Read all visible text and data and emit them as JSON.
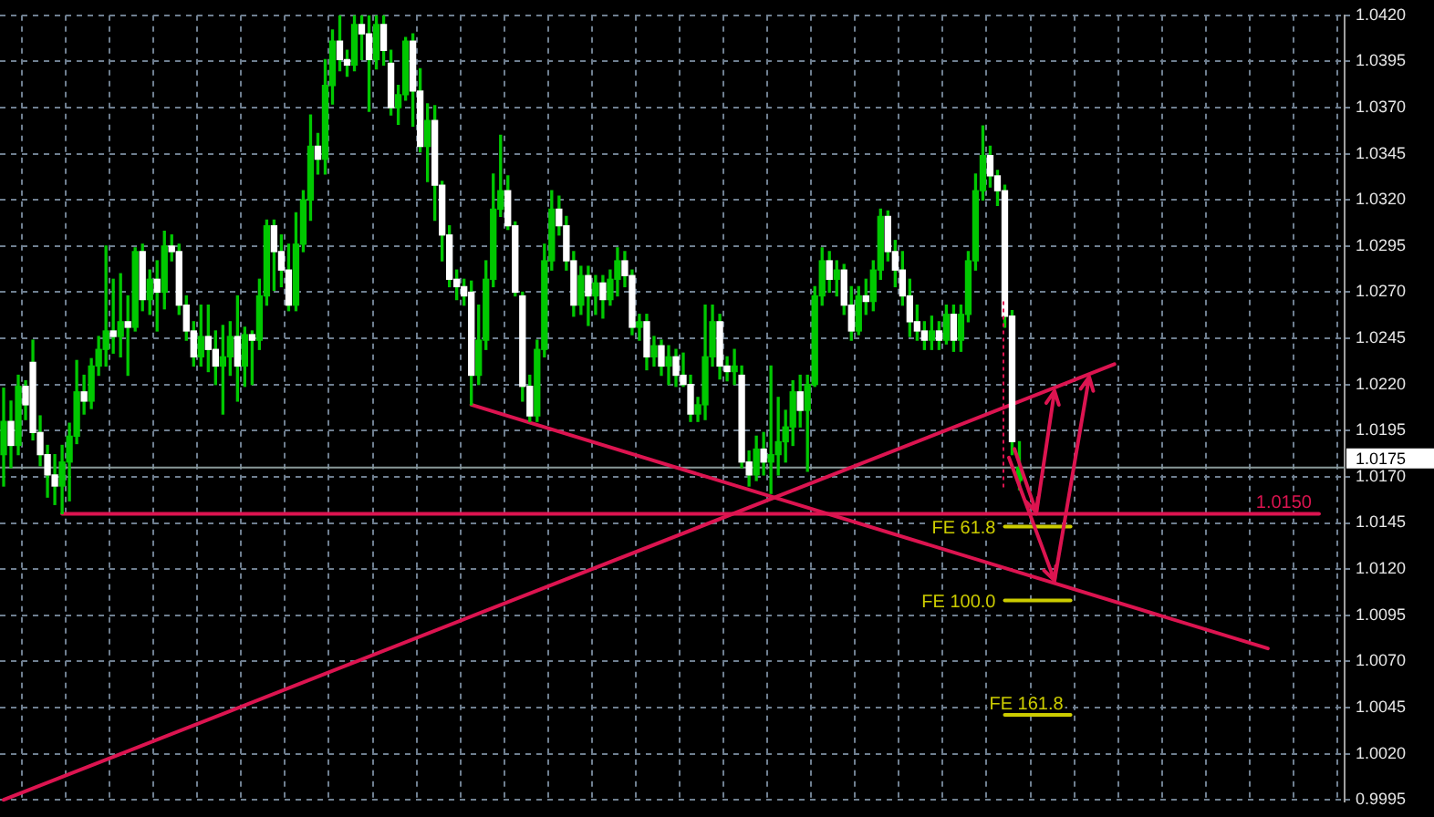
{
  "chart_data": {
    "type": "candlestick",
    "categories": [
      null,
      null,
      null,
      null,
      null,
      null,
      null,
      null,
      null,
      null,
      null,
      null,
      null,
      null,
      null,
      null,
      null,
      null,
      null,
      null,
      null,
      null,
      null,
      null,
      null,
      null,
      null,
      null,
      null,
      null,
      null,
      null,
      null,
      null,
      null,
      null,
      null,
      null,
      null,
      null,
      null,
      null,
      null,
      null,
      null,
      null,
      null,
      null,
      null,
      null,
      null,
      null,
      null,
      null,
      null,
      null,
      null,
      null,
      null,
      null,
      null,
      null,
      null,
      null,
      null,
      null,
      null,
      null,
      null,
      null,
      null,
      null,
      null,
      null,
      null,
      null,
      null,
      null,
      null,
      null,
      null,
      null,
      null,
      null,
      null,
      null,
      null,
      null,
      null,
      null,
      null,
      null,
      null,
      null,
      null,
      null,
      null,
      null,
      null,
      null,
      null,
      null,
      null,
      null,
      null,
      null,
      null,
      null,
      null,
      null,
      null,
      null,
      null,
      null,
      null,
      null,
      null,
      null,
      null,
      null,
      null,
      null,
      null,
      null,
      null,
      null,
      null,
      null,
      null,
      null,
      null,
      null,
      null,
      null,
      null,
      null,
      null,
      null,
      null,
      null,
      null,
      null,
      null,
      null,
      null,
      null,
      null,
      null,
      null,
      null,
      null,
      null,
      null,
      null,
      null,
      null,
      null,
      null,
      null,
      null,
      null,
      null,
      null,
      null,
      null,
      null,
      null,
      null,
      null,
      null,
      null,
      null,
      null,
      null,
      null,
      null,
      null,
      null,
      null,
      null,
      null,
      null,
      null,
      null
    ],
    "ohlc": [
      [
        1.0182,
        1.0218,
        1.0165,
        1.02
      ],
      [
        1.02,
        1.0211,
        1.0175,
        1.0187
      ],
      [
        1.0187,
        1.0225,
        1.0182,
        1.0219
      ],
      [
        1.0219,
        1.0222,
        1.0201,
        1.0209
      ],
      [
        1.0232,
        1.0244,
        1.019,
        1.0194
      ],
      [
        1.0194,
        1.0203,
        1.0176,
        1.0182
      ],
      [
        1.0182,
        1.0187,
        1.0159,
        1.0171
      ],
      [
        1.0171,
        1.0182,
        1.0155,
        1.0165
      ],
      [
        1.0165,
        1.0187,
        1.015,
        1.0178
      ],
      [
        1.0178,
        1.0199,
        1.0157,
        1.0192
      ],
      [
        1.0192,
        1.0233,
        1.0188,
        1.0216
      ],
      [
        1.0216,
        1.0225,
        1.0204,
        1.0211
      ],
      [
        1.0211,
        1.0234,
        1.0207,
        1.023
      ],
      [
        1.023,
        1.0246,
        1.0225,
        1.0239
      ],
      [
        1.0239,
        1.0295,
        1.023,
        1.0249
      ],
      [
        1.0249,
        1.0277,
        1.0237,
        1.0246
      ],
      [
        1.0246,
        1.028,
        1.0235,
        1.0254
      ],
      [
        1.0254,
        1.0268,
        1.0225,
        1.0251
      ],
      [
        1.0251,
        1.0294,
        1.0249,
        1.0292
      ],
      [
        1.0292,
        1.0296,
        1.026,
        1.0266
      ],
      [
        1.0266,
        1.0282,
        1.0258,
        1.0277
      ],
      [
        1.0277,
        1.0287,
        1.0249,
        1.027
      ],
      [
        1.027,
        1.0303,
        1.0261,
        1.0295
      ],
      [
        1.0295,
        1.0301,
        1.0287,
        1.0292
      ],
      [
        1.0292,
        1.0296,
        1.0258,
        1.0263
      ],
      [
        1.0263,
        1.0268,
        1.0244,
        1.0249
      ],
      [
        1.0249,
        1.0254,
        1.023,
        1.0235
      ],
      [
        1.0235,
        1.0263,
        1.023,
        1.0246
      ],
      [
        1.0246,
        1.0263,
        1.0227,
        1.0239
      ],
      [
        1.0239,
        1.0249,
        1.022,
        1.023
      ],
      [
        1.023,
        1.0252,
        1.0204,
        1.0235
      ],
      [
        1.0235,
        1.0254,
        1.0225,
        1.0246
      ],
      [
        1.0246,
        1.0268,
        1.0211,
        1.023
      ],
      [
        1.023,
        1.0251,
        1.0219,
        1.0247
      ],
      [
        1.0247,
        1.0249,
        1.022,
        1.0244
      ],
      [
        1.0244,
        1.0277,
        1.0239,
        1.0268
      ],
      [
        1.0268,
        1.0309,
        1.0263,
        1.0306
      ],
      [
        1.0306,
        1.0309,
        1.0271,
        1.0292
      ],
      [
        1.0292,
        1.0301,
        1.0273,
        1.0282
      ],
      [
        1.0282,
        1.0296,
        1.026,
        1.0263
      ],
      [
        1.0263,
        1.0313,
        1.026,
        1.0296
      ],
      [
        1.0296,
        1.0325,
        1.0292,
        1.032
      ],
      [
        1.032,
        1.0366,
        1.0309,
        1.0349
      ],
      [
        1.0349,
        1.0356,
        1.0334,
        1.0342
      ],
      [
        1.0342,
        1.0396,
        1.0334,
        1.0382
      ],
      [
        1.0382,
        1.0412,
        1.0372,
        1.0406
      ],
      [
        1.0406,
        1.042,
        1.039,
        1.0396
      ],
      [
        1.0396,
        1.0401,
        1.0387,
        1.0393
      ],
      [
        1.0393,
        1.042,
        1.039,
        1.0415
      ],
      [
        1.0415,
        1.042,
        1.0396,
        1.041
      ],
      [
        1.041,
        1.042,
        1.0368,
        1.0396
      ],
      [
        1.0396,
        1.042,
        1.0391,
        1.0415
      ],
      [
        1.0415,
        1.042,
        1.0393,
        1.0401
      ],
      [
        1.0394,
        1.0401,
        1.0366,
        1.037
      ],
      [
        1.037,
        1.0382,
        1.0361,
        1.0377
      ],
      [
        1.0377,
        1.0408,
        1.0374,
        1.0406
      ],
      [
        1.0406,
        1.041,
        1.036,
        1.0379
      ],
      [
        1.0379,
        1.0391,
        1.0346,
        1.0349
      ],
      [
        1.0349,
        1.0372,
        1.033,
        1.0363
      ],
      [
        1.0363,
        1.0371,
        1.0309,
        1.0328
      ],
      [
        1.0328,
        1.033,
        1.0287,
        1.0301
      ],
      [
        1.0301,
        1.0306,
        1.0273,
        1.0277
      ],
      [
        1.0277,
        1.0282,
        1.0266,
        1.0273
      ],
      [
        1.0273,
        1.0277,
        1.0263,
        1.0268
      ],
      [
        1.027,
        1.0276,
        1.0209,
        1.0225
      ],
      [
        1.0225,
        1.0263,
        1.022,
        1.0244
      ],
      [
        1.0244,
        1.0287,
        1.0239,
        1.0277
      ],
      [
        1.0277,
        1.0334,
        1.0273,
        1.0315
      ],
      [
        1.0315,
        1.0355,
        1.0311,
        1.0325
      ],
      [
        1.0325,
        1.0333,
        1.0304,
        1.0306
      ],
      [
        1.0306,
        1.0308,
        1.0268,
        1.027
      ],
      [
        1.0268,
        1.027,
        1.0211,
        1.0219
      ],
      [
        1.0219,
        1.0225,
        1.02,
        1.0203
      ],
      [
        1.0203,
        1.0244,
        1.02,
        1.0239
      ],
      [
        1.0239,
        1.0296,
        1.0235,
        1.0287
      ],
      [
        1.0287,
        1.0325,
        1.0282,
        1.0315
      ],
      [
        1.0315,
        1.0322,
        1.0301,
        1.0306
      ],
      [
        1.0306,
        1.0311,
        1.0282,
        1.0287
      ],
      [
        1.0287,
        1.0292,
        1.0257,
        1.0263
      ],
      [
        1.0263,
        1.0284,
        1.0258,
        1.0279
      ],
      [
        1.0279,
        1.0284,
        1.0252,
        1.0268
      ],
      [
        1.0268,
        1.0279,
        1.0258,
        1.0275
      ],
      [
        1.0275,
        1.0279,
        1.0256,
        1.0266
      ],
      [
        1.0266,
        1.0282,
        1.0263,
        1.0277
      ],
      [
        1.0277,
        1.0294,
        1.0268,
        1.0287
      ],
      [
        1.0287,
        1.0292,
        1.0273,
        1.0279
      ],
      [
        1.0279,
        1.0282,
        1.0247,
        1.0251
      ],
      [
        1.0251,
        1.0258,
        1.0244,
        1.0254
      ],
      [
        1.0254,
        1.0258,
        1.0228,
        1.0235
      ],
      [
        1.0235,
        1.0246,
        1.023,
        1.0241
      ],
      [
        1.0241,
        1.0244,
        1.0225,
        1.023
      ],
      [
        1.023,
        1.0241,
        1.022,
        1.0235
      ],
      [
        1.0235,
        1.0239,
        1.0219,
        1.0225
      ],
      [
        1.0225,
        1.0237,
        1.0219,
        1.022
      ],
      [
        1.022,
        1.0225,
        1.02,
        1.0204
      ],
      [
        1.0204,
        1.0213,
        1.02,
        1.0209
      ],
      [
        1.0209,
        1.0263,
        1.0201,
        1.0235
      ],
      [
        1.0235,
        1.0263,
        1.023,
        1.0254
      ],
      [
        1.0254,
        1.0258,
        1.0223,
        1.023
      ],
      [
        1.023,
        1.0235,
        1.0222,
        1.0227
      ],
      [
        1.0227,
        1.0239,
        1.022,
        1.023
      ],
      [
        1.0225,
        1.023,
        1.0175,
        1.0178
      ],
      [
        1.0178,
        1.0184,
        1.0165,
        1.0171
      ],
      [
        1.0171,
        1.0192,
        1.0168,
        1.0185
      ],
      [
        1.0185,
        1.0194,
        1.0171,
        1.0178
      ],
      [
        1.0178,
        1.023,
        1.0161,
        1.0182
      ],
      [
        1.0182,
        1.0213,
        1.0171,
        1.0189
      ],
      [
        1.0189,
        1.0206,
        1.0178,
        1.0197
      ],
      [
        1.0197,
        1.0222,
        1.0187,
        1.0216
      ],
      [
        1.0216,
        1.0225,
        1.0197,
        1.0206
      ],
      [
        1.0206,
        1.0225,
        1.0173,
        1.022
      ],
      [
        1.022,
        1.0273,
        1.0219,
        1.0268
      ],
      [
        1.0268,
        1.0294,
        1.0263,
        1.0287
      ],
      [
        1.0287,
        1.0292,
        1.027,
        1.0277
      ],
      [
        1.0277,
        1.0287,
        1.0268,
        1.0282
      ],
      [
        1.0282,
        1.0285,
        1.0258,
        1.0263
      ],
      [
        1.0263,
        1.0273,
        1.0244,
        1.0249
      ],
      [
        1.0249,
        1.0273,
        1.0247,
        1.0268
      ],
      [
        1.0268,
        1.0277,
        1.0258,
        1.0265
      ],
      [
        1.0265,
        1.0287,
        1.026,
        1.0282
      ],
      [
        1.0282,
        1.0315,
        1.0277,
        1.0311
      ],
      [
        1.0311,
        1.0314,
        1.0287,
        1.0292
      ],
      [
        1.0292,
        1.0298,
        1.0273,
        1.0282
      ],
      [
        1.0282,
        1.0292,
        1.0263,
        1.0268
      ],
      [
        1.0268,
        1.0277,
        1.0246,
        1.0254
      ],
      [
        1.0254,
        1.0263,
        1.0244,
        1.0249
      ],
      [
        1.0249,
        1.0254,
        1.0239,
        1.0244
      ],
      [
        1.0244,
        1.0257,
        1.0239,
        1.0249
      ],
      [
        1.0249,
        1.0254,
        1.0239,
        1.0244
      ],
      [
        1.0244,
        1.0263,
        1.0242,
        1.0258
      ],
      [
        1.0258,
        1.0263,
        1.0238,
        1.0244
      ],
      [
        1.0244,
        1.0263,
        1.0238,
        1.0258
      ],
      [
        1.0258,
        1.0292,
        1.0254,
        1.0287
      ],
      [
        1.0287,
        1.0334,
        1.0282,
        1.0325
      ],
      [
        1.0325,
        1.036,
        1.032,
        1.0344
      ],
      [
        1.0344,
        1.0349,
        1.0327,
        1.0333
      ],
      [
        1.0333,
        1.0336,
        1.0317,
        1.0325
      ],
      [
        1.0325,
        1.0328,
        1.0251,
        1.0257
      ],
      [
        1.0257,
        1.026,
        1.0182,
        1.0189
      ],
      [
        1.0168,
        1.0189,
        1.0163,
        1.0175
      ],
      null,
      null,
      null,
      null,
      null,
      null,
      null,
      null,
      null,
      null,
      null,
      null,
      null,
      null,
      null,
      null,
      null,
      null,
      null,
      null,
      null,
      null,
      null,
      null,
      null,
      null,
      null,
      null,
      null,
      null,
      null,
      null,
      null,
      null,
      null,
      null,
      null,
      null,
      null,
      null,
      null,
      null,
      null,
      null
    ],
    "color": "#00c800",
    "colors": [
      "#00c800",
      "#ffffff",
      "#00c800",
      "#ffffff",
      "#ffffff",
      "#ffffff",
      "#ffffff",
      "#ffffff",
      "#00c800",
      "#00c800",
      "#00c800",
      "#ffffff",
      "#00c800",
      "#00c800",
      "#00c800",
      "#ffffff",
      "#00c800",
      "#ffffff",
      "#00c800",
      "#ffffff",
      "#00c800",
      "#ffffff",
      "#00c800",
      "#ffffff",
      "#ffffff",
      "#ffffff",
      "#ffffff",
      "#00c800",
      "#ffffff",
      "#ffffff",
      "#00c800",
      "#00c800",
      "#ffffff",
      "#00c800",
      "#ffffff",
      "#00c800",
      "#00c800",
      "#ffffff",
      "#ffffff",
      "#ffffff",
      "#00c800",
      "#00c800",
      "#00c800",
      "#ffffff",
      "#00c800",
      "#00c800",
      "#ffffff",
      "#ffffff",
      "#00c800",
      "#ffffff",
      "#ffffff",
      "#00c800",
      "#ffffff",
      "#ffffff",
      "#00c800",
      "#00c800",
      "#ffffff",
      "#ffffff",
      "#00c800",
      "#ffffff",
      "#ffffff",
      "#ffffff",
      "#ffffff",
      "#ffffff",
      "#ffffff",
      "#00c800",
      "#00c800",
      "#00c800",
      "#00c800",
      "#ffffff",
      "#ffffff",
      "#ffffff",
      "#ffffff",
      "#00c800",
      "#00c800",
      "#00c800",
      "#ffffff",
      "#ffffff",
      "#ffffff",
      "#00c800",
      "#ffffff",
      "#00c800",
      "#ffffff",
      "#00c800",
      "#00c800",
      "#ffffff",
      "#ffffff",
      "#00c800",
      "#ffffff",
      "#00c800",
      "#ffffff",
      "#00c800",
      "#ffffff",
      "#ffffff",
      "#ffffff",
      "#00c800",
      "#00c800",
      "#00c800",
      "#ffffff",
      "#ffffff",
      "#00c800",
      "#ffffff",
      "#ffffff",
      "#00c800",
      "#ffffff",
      "#00c800",
      "#00c800",
      "#00c800",
      "#00c800",
      "#ffffff",
      "#00c800",
      "#00c800",
      "#00c800",
      "#ffffff",
      "#00c800",
      "#ffffff",
      "#ffffff",
      "#00c800",
      "#ffffff",
      "#00c800",
      "#00c800",
      "#ffffff",
      "#ffffff",
      "#ffffff",
      "#ffffff",
      "#ffffff",
      "#ffffff",
      "#00c800",
      "#ffffff",
      "#00c800",
      "#ffffff",
      "#00c800",
      "#00c800",
      "#00c800",
      "#00c800",
      "#ffffff",
      "#ffffff",
      "#ffffff",
      "#ffffff",
      "#00c800",
      null,
      null,
      null,
      null,
      null,
      null,
      null,
      null,
      null,
      null,
      null,
      null,
      null,
      null,
      null,
      null,
      null,
      null,
      null,
      null,
      null,
      null,
      null,
      null,
      null,
      null,
      null,
      null,
      null,
      null,
      null,
      null,
      null,
      null,
      null,
      null,
      null,
      null,
      null,
      null,
      null,
      null,
      null,
      null
    ],
    "series": [
      {
        "type": "line",
        "color": "#dc1450",
        "values": [
          null,
          null,
          null,
          null,
          null,
          null,
          null,
          null,
          null,
          null,
          null,
          null,
          null,
          null,
          null,
          null,
          null,
          null,
          null,
          null,
          null,
          null,
          null,
          null,
          null,
          null,
          null,
          null,
          null,
          null,
          null,
          null,
          null,
          null,
          null,
          null,
          null,
          null,
          null,
          null,
          null,
          null,
          null,
          null,
          null,
          null,
          null,
          null,
          null,
          null,
          null,
          null,
          null,
          null,
          null,
          null,
          null,
          null,
          null,
          null,
          null,
          null,
          null,
          null,
          1.0209,
          null,
          null,
          null,
          null,
          null,
          null,
          null,
          null,
          null,
          null,
          null,
          null,
          null,
          null,
          null,
          null,
          null,
          null,
          null,
          null,
          null,
          null,
          null,
          null,
          null,
          null,
          null,
          null,
          null,
          null,
          null,
          null,
          null,
          null,
          null,
          null,
          null,
          null,
          null,
          null,
          null,
          null,
          null,
          null,
          null,
          null,
          null,
          null,
          null,
          null,
          null,
          null,
          null,
          null,
          null,
          null,
          null,
          null,
          null,
          null,
          null,
          null,
          null,
          null,
          null,
          null,
          null,
          null,
          null,
          null,
          null,
          null,
          null,
          null,
          null,
          null,
          null,
          null,
          null,
          null,
          null,
          null,
          null,
          null,
          null,
          null,
          null,
          null,
          null,
          null,
          null,
          null,
          null,
          null,
          null,
          null,
          null,
          null,
          null,
          null,
          null,
          null,
          null,
          null,
          null,
          null,
          null,
          null,
          1.0077,
          null,
          null,
          null,
          null,
          null,
          null,
          null,
          null,
          null,
          null
        ]
      },
      {
        "type": "line",
        "color": "#dc1450",
        "values": [
          0.9995,
          null,
          null,
          null,
          null,
          null,
          null,
          null,
          null,
          null,
          null,
          null,
          null,
          null,
          null,
          null,
          null,
          null,
          null,
          null,
          null,
          null,
          null,
          null,
          null,
          null,
          null,
          null,
          null,
          null,
          null,
          null,
          null,
          null,
          null,
          null,
          null,
          null,
          null,
          null,
          null,
          null,
          null,
          null,
          null,
          null,
          null,
          null,
          null,
          null,
          null,
          null,
          null,
          null,
          null,
          null,
          null,
          null,
          null,
          null,
          null,
          null,
          null,
          null,
          null,
          null,
          null,
          null,
          null,
          null,
          null,
          null,
          null,
          null,
          null,
          null,
          null,
          null,
          null,
          null,
          null,
          null,
          null,
          null,
          null,
          null,
          null,
          null,
          null,
          null,
          null,
          null,
          null,
          null,
          null,
          null,
          null,
          null,
          null,
          null,
          null,
          null,
          null,
          null,
          null,
          null,
          null,
          null,
          null,
          null,
          null,
          null,
          null,
          null,
          null,
          null,
          null,
          null,
          null,
          null,
          null,
          null,
          null,
          null,
          null,
          null,
          null,
          null,
          null,
          null,
          null,
          null,
          null,
          null,
          null,
          null,
          null,
          null,
          null,
          null,
          null,
          null,
          null,
          null,
          null,
          null,
          null,
          null,
          null,
          null,
          null,
          null,
          1.0231,
          null,
          null,
          null,
          null,
          null,
          null,
          null,
          null,
          null,
          null,
          null,
          null,
          null,
          null,
          null,
          null,
          null,
          null,
          null,
          null,
          null,
          null,
          null,
          null,
          null,
          null,
          null,
          null,
          null,
          null,
          null
        ]
      },
      {
        "type": "line",
        "name": "1.0150",
        "color": "#dc1450",
        "values": [
          null,
          null,
          null,
          null,
          null,
          null,
          null,
          null,
          1.015,
          null,
          null,
          null,
          null,
          null,
          null,
          null,
          null,
          null,
          null,
          null,
          null,
          null,
          null,
          null,
          null,
          null,
          null,
          null,
          null,
          null,
          null,
          null,
          null,
          null,
          null,
          null,
          null,
          null,
          null,
          null,
          null,
          null,
          null,
          null,
          null,
          null,
          null,
          null,
          null,
          null,
          null,
          null,
          null,
          null,
          null,
          null,
          null,
          null,
          null,
          null,
          null,
          null,
          null,
          null,
          null,
          null,
          null,
          null,
          null,
          null,
          null,
          null,
          null,
          null,
          null,
          null,
          null,
          null,
          null,
          null,
          null,
          null,
          null,
          null,
          null,
          null,
          null,
          null,
          null,
          null,
          null,
          null,
          null,
          null,
          null,
          null,
          null,
          null,
          null,
          null,
          null,
          null,
          null,
          null,
          null,
          null,
          null,
          null,
          null,
          null,
          null,
          null,
          null,
          null,
          null,
          null,
          null,
          null,
          null,
          null,
          null,
          null,
          null,
          null,
          null,
          null,
          null,
          null,
          null,
          null,
          null,
          null,
          null,
          null,
          null,
          null,
          null,
          null,
          null,
          null,
          null,
          null,
          null,
          null,
          null,
          null,
          null,
          null,
          null,
          null,
          null,
          null,
          null,
          null,
          null,
          null,
          null,
          null,
          null,
          null,
          null,
          null,
          null,
          null,
          null,
          null,
          null,
          null,
          null,
          null,
          null,
          null,
          null,
          null,
          null,
          null,
          null,
          null,
          null,
          null,
          1.015,
          null,
          null,
          null
        ]
      },
      {
        "type": "line",
        "name": "FE 61.8",
        "color": "#cccc00",
        "values": [
          null,
          null,
          null,
          null,
          null,
          null,
          null,
          null,
          null,
          null,
          null,
          null,
          null,
          null,
          null,
          null,
          null,
          null,
          null,
          null,
          null,
          null,
          null,
          null,
          null,
          null,
          null,
          null,
          null,
          null,
          null,
          null,
          null,
          null,
          null,
          null,
          null,
          null,
          null,
          null,
          null,
          null,
          null,
          null,
          null,
          null,
          null,
          null,
          null,
          null,
          null,
          null,
          null,
          null,
          null,
          null,
          null,
          null,
          null,
          null,
          null,
          null,
          null,
          null,
          null,
          null,
          null,
          null,
          null,
          null,
          null,
          null,
          null,
          null,
          null,
          null,
          null,
          null,
          null,
          null,
          null,
          null,
          null,
          null,
          null,
          null,
          null,
          null,
          null,
          null,
          null,
          null,
          null,
          null,
          null,
          null,
          null,
          null,
          null,
          null,
          null,
          null,
          null,
          null,
          null,
          null,
          null,
          null,
          null,
          null,
          null,
          null,
          null,
          null,
          null,
          null,
          null,
          null,
          null,
          null,
          null,
          null,
          null,
          null,
          null,
          null,
          null,
          null,
          null,
          null,
          null,
          null,
          null,
          null,
          null,
          null,
          null,
          1.0143,
          null,
          null,
          null,
          null,
          null,
          null,
          null,
          null,
          1.0143,
          null,
          null,
          null,
          null,
          null,
          null,
          null,
          null,
          null,
          null,
          null,
          null,
          null,
          null,
          null,
          null,
          null,
          null,
          null,
          null,
          null,
          null,
          null,
          null,
          null,
          null,
          null,
          null,
          null,
          null,
          null,
          null,
          null,
          null,
          null,
          null,
          null
        ]
      },
      {
        "type": "line",
        "name": "FE 100.0",
        "color": "#cccc00",
        "values": [
          null,
          null,
          null,
          null,
          null,
          null,
          null,
          null,
          null,
          null,
          null,
          null,
          null,
          null,
          null,
          null,
          null,
          null,
          null,
          null,
          null,
          null,
          null,
          null,
          null,
          null,
          null,
          null,
          null,
          null,
          null,
          null,
          null,
          null,
          null,
          null,
          null,
          null,
          null,
          null,
          null,
          null,
          null,
          null,
          null,
          null,
          null,
          null,
          null,
          null,
          null,
          null,
          null,
          null,
          null,
          null,
          null,
          null,
          null,
          null,
          null,
          null,
          null,
          null,
          null,
          null,
          null,
          null,
          null,
          null,
          null,
          null,
          null,
          null,
          null,
          null,
          null,
          null,
          null,
          null,
          null,
          null,
          null,
          null,
          null,
          null,
          null,
          null,
          null,
          null,
          null,
          null,
          null,
          null,
          null,
          null,
          null,
          null,
          null,
          null,
          null,
          null,
          null,
          null,
          null,
          null,
          null,
          null,
          null,
          null,
          null,
          null,
          null,
          null,
          null,
          null,
          null,
          null,
          null,
          null,
          null,
          null,
          null,
          null,
          null,
          null,
          null,
          null,
          null,
          null,
          null,
          null,
          null,
          null,
          null,
          null,
          null,
          1.0103,
          null,
          null,
          null,
          null,
          null,
          null,
          null,
          null,
          1.0103,
          null,
          null,
          null,
          null,
          null,
          null,
          null,
          null,
          null,
          null,
          null,
          null,
          null,
          null,
          null,
          null,
          null,
          null,
          null,
          null,
          null,
          null,
          null,
          null,
          null,
          null,
          null,
          null,
          null,
          null,
          null,
          null,
          null,
          null,
          null,
          null,
          null
        ]
      },
      {
        "type": "line",
        "name": "FE 161.8",
        "color": "#cccc00",
        "values": [
          null,
          null,
          null,
          null,
          null,
          null,
          null,
          null,
          null,
          null,
          null,
          null,
          null,
          null,
          null,
          null,
          null,
          null,
          null,
          null,
          null,
          null,
          null,
          null,
          null,
          null,
          null,
          null,
          null,
          null,
          null,
          null,
          null,
          null,
          null,
          null,
          null,
          null,
          null,
          null,
          null,
          null,
          null,
          null,
          null,
          null,
          null,
          null,
          null,
          null,
          null,
          null,
          null,
          null,
          null,
          null,
          null,
          null,
          null,
          null,
          null,
          null,
          null,
          null,
          null,
          null,
          null,
          null,
          null,
          null,
          null,
          null,
          null,
          null,
          null,
          null,
          null,
          null,
          null,
          null,
          null,
          null,
          null,
          null,
          null,
          null,
          null,
          null,
          null,
          null,
          null,
          null,
          null,
          null,
          null,
          null,
          null,
          null,
          null,
          null,
          null,
          null,
          null,
          null,
          null,
          null,
          null,
          null,
          null,
          null,
          null,
          null,
          null,
          null,
          null,
          null,
          null,
          null,
          null,
          null,
          null,
          null,
          null,
          null,
          null,
          null,
          null,
          null,
          null,
          null,
          null,
          null,
          null,
          null,
          null,
          null,
          null,
          1.0041,
          null,
          null,
          null,
          null,
          null,
          null,
          null,
          null,
          1.0041,
          null,
          null,
          null,
          null,
          null,
          null,
          null,
          null,
          null,
          null,
          null,
          null,
          null,
          null,
          null,
          null,
          null,
          null,
          null,
          null,
          null,
          null,
          null,
          null,
          null,
          null,
          null,
          null,
          null,
          null,
          null,
          null,
          null,
          null,
          null,
          null,
          null
        ]
      }
    ],
    "ylim": [
      0.9994,
      1.042
    ],
    "yticks": [
      {
        "value": 1.042,
        "label": "1.0420"
      },
      1.0395,
      {
        "value": 1.037,
        "label": "1.0370"
      },
      1.0345,
      {
        "value": 1.032,
        "label": "1.0320"
      },
      1.0295,
      {
        "value": 1.027,
        "label": "1.0270"
      },
      1.0245,
      {
        "value": 1.022,
        "label": "1.0220"
      },
      1.0195,
      {
        "value": 1.017,
        "label": "1.0170"
      },
      1.0145,
      {
        "value": 1.012,
        "label": "1.0120"
      },
      1.0095,
      {
        "value": 1.007,
        "label": "1.0070"
      },
      1.0045,
      {
        "value": 1.002,
        "label": "1.0020"
      },
      0.9995
    ],
    "ref_lines": [
      {
        "axis": "y",
        "value": 1.0175,
        "label": "1.0175",
        "color": "#8a9a9a"
      }
    ],
    "grid": true,
    "tick_labels": "y",
    "marker": "none"
  }
}
